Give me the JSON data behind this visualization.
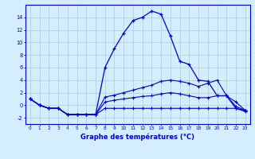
{
  "hours": [
    0,
    1,
    2,
    3,
    4,
    5,
    6,
    7,
    8,
    9,
    10,
    11,
    12,
    13,
    14,
    15,
    16,
    17,
    18,
    19,
    20,
    21,
    22,
    23
  ],
  "series_main": [
    1,
    0,
    -0.5,
    -0.5,
    -1.5,
    -1.5,
    -1.5,
    -1.5,
    6.0,
    9.0,
    11.5,
    13.5,
    14.0,
    15.0,
    14.5,
    11.0,
    7.0,
    6.5,
    4.0,
    3.8,
    1.5,
    1.5,
    -0.5,
    -1.0
  ],
  "series_upper_low": [
    1,
    0,
    -0.5,
    -0.5,
    -1.5,
    -1.5,
    -1.5,
    -1.5,
    1.3,
    1.6,
    2.0,
    2.4,
    2.8,
    3.2,
    3.8,
    4.0,
    3.8,
    3.5,
    3.0,
    3.5,
    4.0,
    1.5,
    -0.2,
    -0.8
  ],
  "series_mid_low": [
    1,
    0,
    -0.5,
    -0.5,
    -1.5,
    -1.5,
    -1.5,
    -1.5,
    0.5,
    0.8,
    1.0,
    1.2,
    1.4,
    1.5,
    1.8,
    2.0,
    1.8,
    1.5,
    1.2,
    1.2,
    1.5,
    1.5,
    0.5,
    -0.8
  ],
  "series_bottom": [
    1,
    0,
    -0.5,
    -0.5,
    -1.5,
    -1.5,
    -1.5,
    -1.5,
    -0.5,
    -0.5,
    -0.5,
    -0.5,
    -0.5,
    -0.5,
    -0.5,
    -0.5,
    -0.5,
    -0.5,
    -0.5,
    -0.5,
    -0.5,
    -0.5,
    -0.5,
    -0.8
  ],
  "line_color": "#0000cc",
  "bg_color": "#d4eeff",
  "grid_color": "#aaccdd",
  "xlabel": "Graphe des températures (°C)",
  "ylim": [
    -3,
    16
  ],
  "xlim": [
    -0.5,
    23.5
  ],
  "yticks": [
    -2,
    0,
    2,
    4,
    6,
    8,
    10,
    12,
    14
  ],
  "xticks": [
    0,
    1,
    2,
    3,
    4,
    5,
    6,
    7,
    8,
    9,
    10,
    11,
    12,
    13,
    14,
    15,
    16,
    17,
    18,
    19,
    20,
    21,
    22,
    23
  ]
}
